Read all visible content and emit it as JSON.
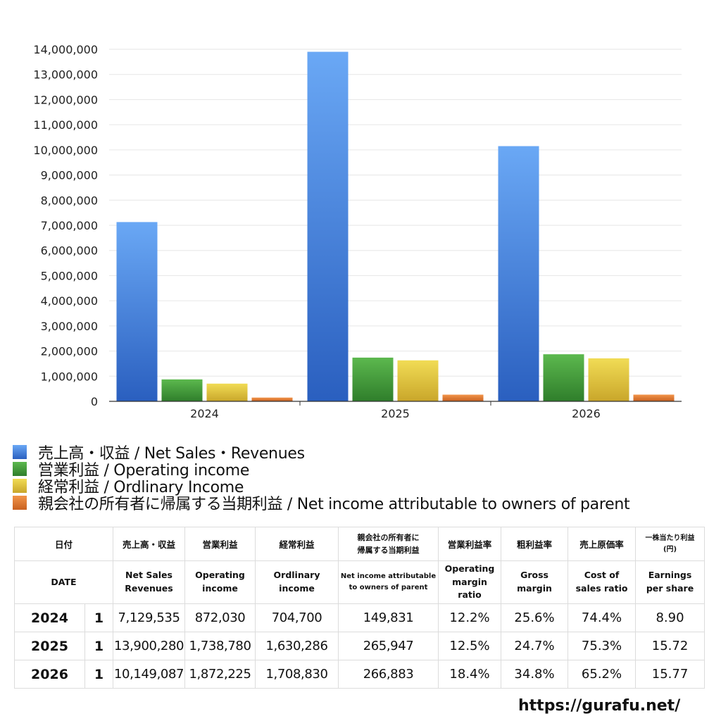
{
  "chart_data": {
    "type": "bar",
    "categories": [
      "2024",
      "2025",
      "2026"
    ],
    "series": [
      {
        "name": "売上高・収益 / Net Sales・Revenues",
        "values": [
          7129535,
          13900280,
          10149087
        ],
        "color": "#3c7be0"
      },
      {
        "name": "営業利益 / Operating income",
        "values": [
          872030,
          1738780,
          1872225
        ],
        "color": "#3f9a3a"
      },
      {
        "name": "経常利益 / Ordlinary Income",
        "values": [
          704700,
          1630286,
          1708830
        ],
        "color": "#dcc23a"
      },
      {
        "name": "親会社の所有者に帰属する当期利益 / Net income attributable to owners of parent",
        "values": [
          149831,
          265947,
          266883
        ],
        "color": "#e07a2e"
      }
    ],
    "ylim": [
      0,
      14000000
    ],
    "yticks": [
      "0",
      "1,000,000",
      "2,000,000",
      "3,000,000",
      "4,000,000",
      "5,000,000",
      "6,000,000",
      "7,000,000",
      "8,000,000",
      "9,000,000",
      "10,000,000",
      "11,000,000",
      "12,000,000",
      "13,000,000",
      "14,000,000"
    ],
    "grid": true,
    "legend_position": "bottom"
  },
  "legend": [
    {
      "label": "売上高・収益 / Net Sales・Revenues",
      "color": "#3c7be0"
    },
    {
      "label": "営業利益 / Operating income",
      "color": "#3f9a3a"
    },
    {
      "label": "経常利益 / Ordlinary Income",
      "color": "#dcc23a"
    },
    {
      "label": "親会社の所有者に帰属する当期利益 / Net income attributable to owners of parent",
      "color": "#e07a2e"
    }
  ],
  "table": {
    "header_jp": {
      "date": "日付",
      "sales": "売上高・収益",
      "op": "営業利益",
      "ord": "経常利益",
      "net1": "親会社の所有者に",
      "net2": "帰属する当期利益",
      "opm": "営業利益率",
      "gm": "粗利益率",
      "cost": "売上原価率",
      "eps1": "一株当たり利益",
      "eps2": "(円)"
    },
    "header_en": {
      "date": "DATE",
      "sales1": "Net Sales",
      "sales2": "Revenues",
      "op1": "Operating",
      "op2": "income",
      "ord1": "Ordlinary",
      "ord2": "income",
      "net1": "Net income attributable",
      "net2": "to owners of parent",
      "opm1": "Operating",
      "opm2": "margin",
      "opm3": "ratio",
      "gm1": "Gross",
      "gm2": "margin",
      "cost1": "Cost of",
      "cost2": "sales ratio",
      "eps1": "Earnings",
      "eps2": "per share"
    },
    "rows": [
      {
        "year": "2024",
        "q": "1",
        "sales": "7,129,535",
        "op": "872,030",
        "ord": "704,700",
        "net": "149,831",
        "opm": "12.2%",
        "gm": "25.6%",
        "cost": "74.4%",
        "eps": "8.90"
      },
      {
        "year": "2025",
        "q": "1",
        "sales": "13,900,280",
        "op": "1,738,780",
        "ord": "1,630,286",
        "net": "265,947",
        "opm": "12.5%",
        "gm": "24.7%",
        "cost": "75.3%",
        "eps": "15.72"
      },
      {
        "year": "2026",
        "q": "1",
        "sales": "10,149,087",
        "op": "1,872,225",
        "ord": "1,708,830",
        "net": "266,883",
        "opm": "18.4%",
        "gm": "34.8%",
        "cost": "65.2%",
        "eps": "15.77"
      }
    ]
  },
  "site": "https://gurafu.net/"
}
